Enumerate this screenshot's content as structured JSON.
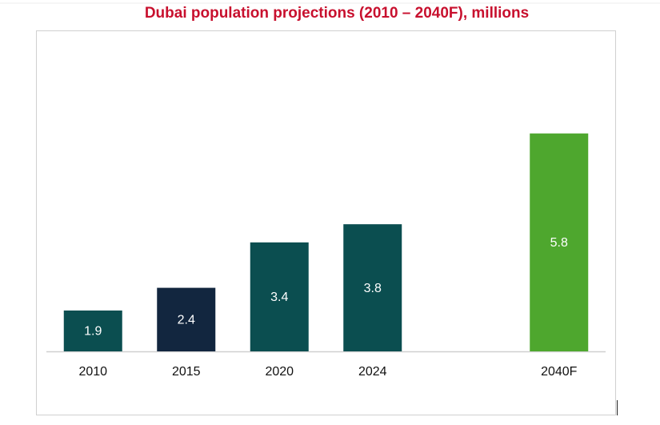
{
  "chart_data": {
    "type": "bar",
    "title": "Dubai population projections (2010 – 2040F), millions",
    "categories": [
      "2010",
      "2015",
      "2020",
      "2024",
      null,
      "2040F"
    ],
    "values": [
      1.9,
      2.4,
      3.4,
      3.8,
      null,
      5.8
    ],
    "colors": [
      "#0b4e50",
      "#12263f",
      "#0b4e50",
      "#0b4e50",
      null,
      "#4ea72e"
    ],
    "ylim": [
      1,
      6.5
    ]
  }
}
